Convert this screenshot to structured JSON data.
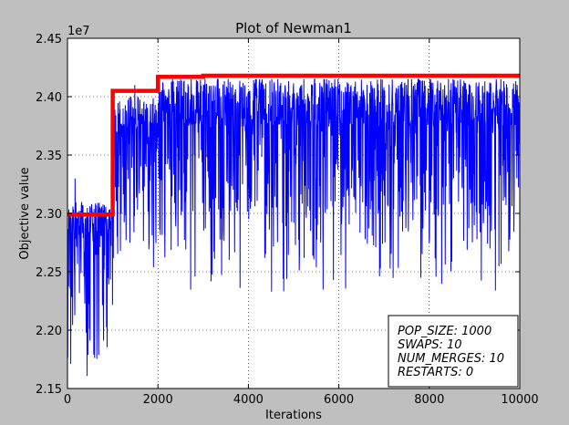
{
  "chart_data": {
    "type": "line",
    "title": "Plot of Newman1",
    "xlabel": "Iterations",
    "ylabel": "Objective value",
    "y_multiplier_label": "1e7",
    "xlim": [
      0,
      10000
    ],
    "ylim": [
      2.15,
      2.45
    ],
    "x_ticks": [
      0,
      2000,
      4000,
      6000,
      8000,
      10000
    ],
    "y_ticks": [
      2.15,
      2.2,
      2.25,
      2.3,
      2.35,
      2.4,
      2.45
    ],
    "x_tick_labels": [
      "0",
      "2000",
      "4000",
      "6000",
      "8000",
      "10000"
    ],
    "y_tick_labels": [
      "2.15",
      "2.20",
      "2.25",
      "2.30",
      "2.35",
      "2.40",
      "2.45"
    ],
    "grid": true,
    "series": [
      {
        "color": "#0000ff",
        "style": "noisy-band",
        "segments": [
          {
            "x_start": 0,
            "x_end": 1000,
            "upper": 2.31,
            "lower": 2.22,
            "max_spike": 2.33,
            "min_spike": 2.16
          },
          {
            "x_start": 1000,
            "x_end": 2000,
            "upper": 2.4,
            "lower": 2.3,
            "max_spike": 2.41,
            "min_spike": 2.25
          },
          {
            "x_start": 2000,
            "x_end": 10000,
            "upper": 2.415,
            "lower": 2.3,
            "max_spike": 2.415,
            "min_spike": 2.23
          }
        ]
      },
      {
        "color": "#ff0000",
        "style": "step",
        "points": [
          [
            0,
            2.299
          ],
          [
            1000,
            2.299
          ],
          [
            1000,
            2.405
          ],
          [
            2000,
            2.405
          ],
          [
            2000,
            2.417
          ],
          [
            3000,
            2.417
          ],
          [
            3000,
            2.418
          ],
          [
            10000,
            2.418
          ]
        ]
      }
    ],
    "annotation": {
      "position": "bottom-right",
      "lines": [
        "POP_SIZE: 1000",
        "SWAPS: 10",
        "NUM_MERGES: 10",
        "RESTARTS: 0"
      ]
    }
  }
}
